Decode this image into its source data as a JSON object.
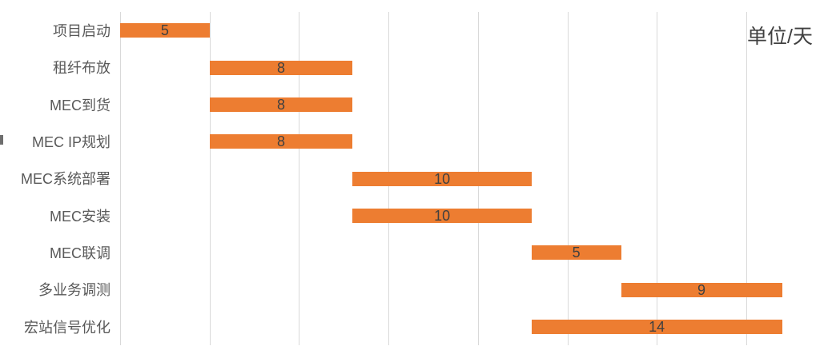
{
  "unit_annotation": "单位/天",
  "chart_data": {
    "type": "bar",
    "subtype": "gantt",
    "title": "",
    "xlabel": "",
    "ylabel": "",
    "unit_annotation": "单位/天",
    "legend": false,
    "grid": true,
    "axis": {
      "x_min": 0,
      "x_max": 39.8,
      "gridline_interval_days": 5,
      "gridline_days": [
        0,
        5,
        10,
        15,
        20,
        25,
        30,
        35
      ]
    },
    "categories": [
      "项目启动",
      "租纤布放",
      "MEC到货",
      "MEC IP规划",
      "MEC系统部署",
      "MEC安装",
      "MEC联调",
      "多业务调测",
      "宏站信号优化"
    ],
    "tasks": [
      {
        "label": "项目启动",
        "start": 0,
        "duration": 5,
        "value_label": "5"
      },
      {
        "label": "租纤布放",
        "start": 5,
        "duration": 8,
        "value_label": "8"
      },
      {
        "label": "MEC到货",
        "start": 5,
        "duration": 8,
        "value_label": "8"
      },
      {
        "label": "MEC IP规划",
        "start": 5,
        "duration": 8,
        "value_label": "8"
      },
      {
        "label": "MEC系统部署",
        "start": 13,
        "duration": 10,
        "value_label": "10"
      },
      {
        "label": "MEC安装",
        "start": 13,
        "duration": 10,
        "value_label": "10"
      },
      {
        "label": "MEC联调",
        "start": 23,
        "duration": 5,
        "value_label": "5"
      },
      {
        "label": "多业务调测",
        "start": 28,
        "duration": 9,
        "value_label": "9"
      },
      {
        "label": "宏站信号优化",
        "start": 23,
        "duration": 14,
        "value_label": "14"
      }
    ],
    "colors": {
      "bar_fill": "#ED7D31",
      "value_label": "#404040",
      "category_label": "#595959",
      "gridline": "#D9D9D9",
      "background": "#FFFFFF"
    }
  }
}
